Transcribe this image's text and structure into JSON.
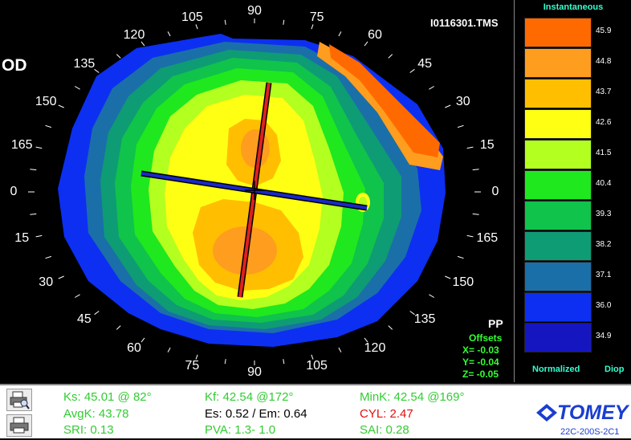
{
  "header": {
    "eye": "OD",
    "filename": "I0116301.TMS"
  },
  "angle_labels": [
    "90",
    "75",
    "60",
    "45",
    "30",
    "15",
    "0",
    "165",
    "150",
    "135",
    "120",
    "105",
    "90",
    "75",
    "60",
    "45",
    "30",
    "15",
    "0",
    "165",
    "150",
    "135",
    "120",
    "105"
  ],
  "offsets": {
    "pp_label": "PP",
    "title": "Offsets",
    "x": "X= -0.03",
    "y": "Y= -0.04",
    "z": "Z= -0.05"
  },
  "legend": {
    "title": "Instantaneous",
    "normalized_label": "Normalized",
    "unit_label": "Diop",
    "rows": [
      {
        "value": "45.9",
        "color": "#ff6a00"
      },
      {
        "value": "44.8",
        "color": "#ff9d1f"
      },
      {
        "value": "43.7",
        "color": "#ffbf00"
      },
      {
        "value": "42.6",
        "color": "#ffff14"
      },
      {
        "value": "41.5",
        "color": "#b3ff1f"
      },
      {
        "value": "40.4",
        "color": "#1fe81f"
      },
      {
        "value": "39.3",
        "color": "#10c34b"
      },
      {
        "value": "38.2",
        "color": "#0e9c74"
      },
      {
        "value": "37.1",
        "color": "#1a6fa8"
      },
      {
        "value": "36.0",
        "color": "#0d2ff2"
      },
      {
        "value": "34.9",
        "color": "#1616c0"
      }
    ]
  },
  "measurements": {
    "ks": "Ks: 45.01 @ 82°",
    "kf": "Kf: 42.54 @172°",
    "mink": "MinK: 42.54 @169°",
    "avgk": "AvgK: 43.78",
    "es_em": "Es: 0.52 / Em: 0.64",
    "cyl": "CYL:  2.47",
    "sri": "SRI: 0.13",
    "pva": "PVA:   1.3-  1.0",
    "sai": "SAI: 0.28"
  },
  "brand": {
    "logo": "TOMEY",
    "version": "22C-200S-2C1"
  },
  "icons": {
    "print_preview": "print-preview-icon",
    "print": "printer-icon"
  }
}
